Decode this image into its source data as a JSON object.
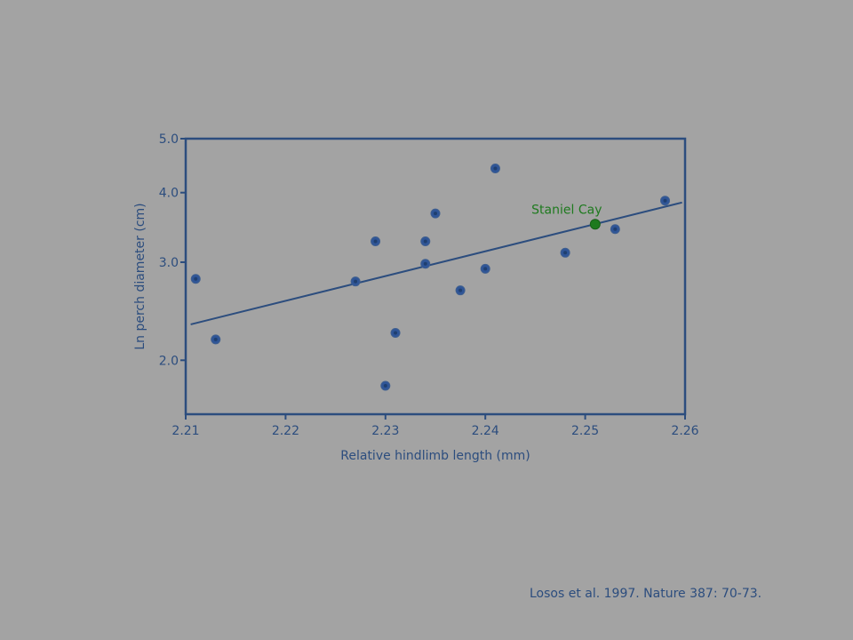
{
  "chart_data": {
    "type": "scatter",
    "title": "",
    "xlabel": "Relative hindlimb length (mm)",
    "ylabel": "Ln perch diameter (cm)",
    "xlim": [
      2.21,
      2.26
    ],
    "ylim": [
      1.6,
      5.0
    ],
    "y_scale": "log",
    "x_ticks": [
      2.21,
      2.22,
      2.23,
      2.24,
      2.25,
      2.26
    ],
    "x_tick_labels": [
      "2.21",
      "2.22",
      "2.23",
      "2.24",
      "2.25",
      "2.26"
    ],
    "y_ticks": [
      2.0,
      3.0,
      4.0,
      5.0
    ],
    "y_tick_labels": [
      "2.0",
      "3.0",
      "4.0",
      "5.0"
    ],
    "grid": false,
    "point_color": "#2f5597",
    "highlight_color": "#1e7a1e",
    "axis_color": "#2c4d7e",
    "points": [
      {
        "x": 2.211,
        "y": 2.8
      },
      {
        "x": 2.213,
        "y": 2.18
      },
      {
        "x": 2.227,
        "y": 2.77
      },
      {
        "x": 2.229,
        "y": 3.27
      },
      {
        "x": 2.23,
        "y": 1.8
      },
      {
        "x": 2.231,
        "y": 2.24
      },
      {
        "x": 2.234,
        "y": 3.27
      },
      {
        "x": 2.234,
        "y": 2.98
      },
      {
        "x": 2.235,
        "y": 3.67
      },
      {
        "x": 2.2375,
        "y": 2.67
      },
      {
        "x": 2.24,
        "y": 2.92
      },
      {
        "x": 2.241,
        "y": 4.42
      },
      {
        "x": 2.248,
        "y": 3.12
      },
      {
        "x": 2.253,
        "y": 3.44
      },
      {
        "x": 2.258,
        "y": 3.87
      }
    ],
    "highlight": {
      "x": 2.251,
      "y": 3.51,
      "label": "Staniel Cay"
    },
    "trendline": {
      "x": [
        2.2105,
        2.2597
      ],
      "y": [
        2.32,
        3.84
      ]
    }
  },
  "citation": "Losos et al. 1997. Nature 387: 70-73."
}
